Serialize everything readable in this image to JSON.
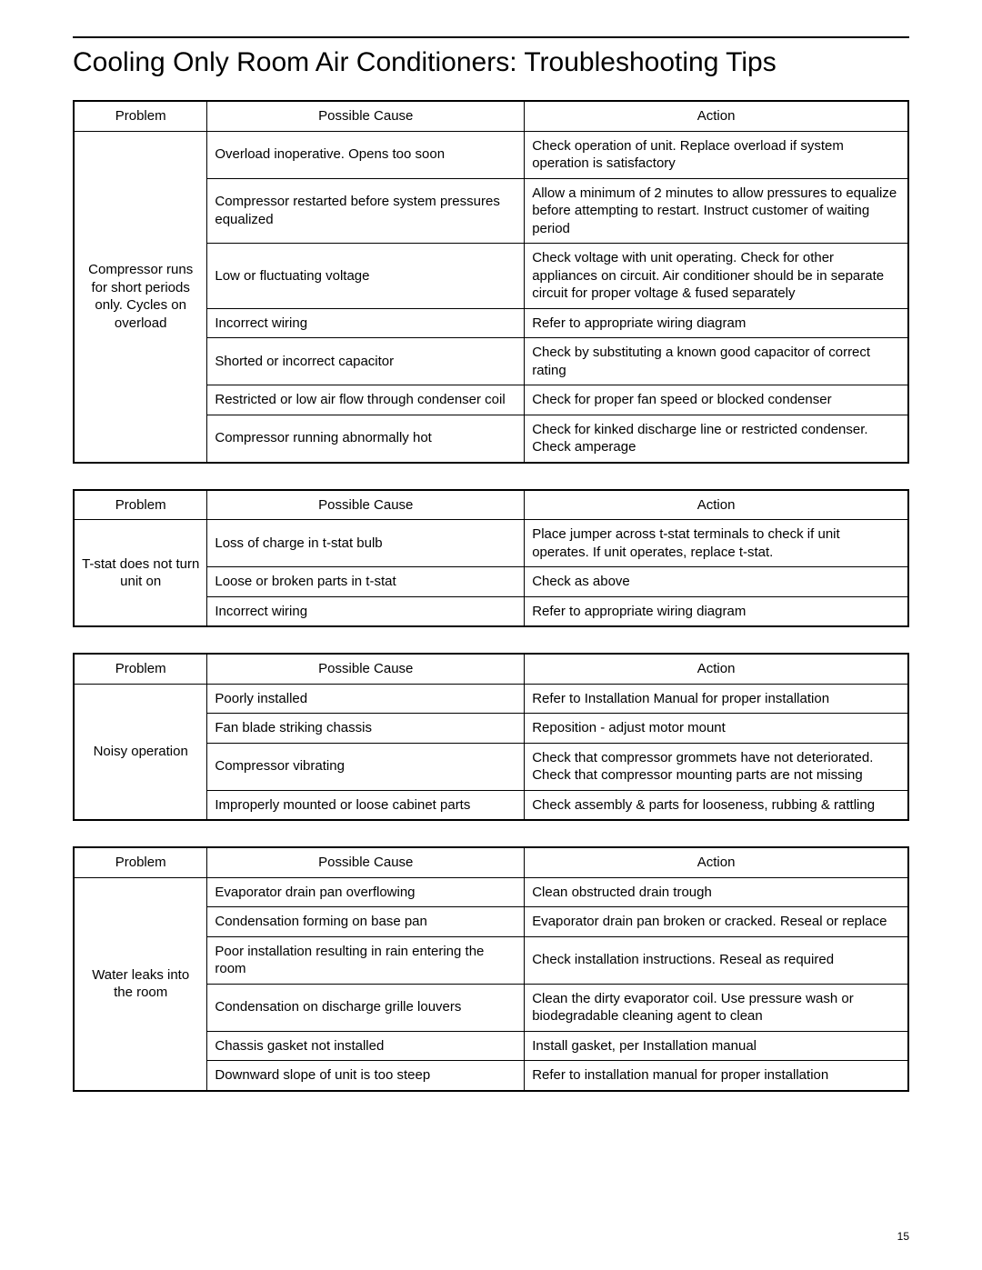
{
  "page_title": "Cooling Only Room Air Conditioners: Troubleshooting Tips",
  "page_number": "15",
  "columns": {
    "problem": "Problem",
    "cause": "Possible Cause",
    "action": "Action"
  },
  "col_widths_pct": {
    "problem": 16,
    "cause": 38,
    "action": 46
  },
  "font": {
    "title_size_pt": 30,
    "body_size_pt": 15,
    "color": "#000000"
  },
  "border_color": "#000000",
  "background_color": "#ffffff",
  "tables": [
    {
      "problem": "Compressor runs for short periods only. Cycles on overload",
      "rows": [
        {
          "cause": "Overload inoperative. Opens too soon",
          "action": "Check operation of unit. Replace overload if system operation is satisfactory"
        },
        {
          "cause": "Compressor restarted before system pressures equalized",
          "action": "Allow a minimum of 2 minutes to allow pressures to equalize before attempting to restart. Instruct customer of waiting period"
        },
        {
          "cause": "Low or ﬂuctuating voltage",
          "action": "Check voltage with unit operating. Check for other appliances on circuit. Air conditioner should be in separate circuit for proper voltage & fused separately"
        },
        {
          "cause": "Incorrect wiring",
          "action": "Refer to appropriate wiring diagram"
        },
        {
          "cause": "Shorted or incorrect capacitor",
          "action": "Check by substituting a known good capacitor of correct rating"
        },
        {
          "cause": "Restricted or low air ﬂow through condenser coil",
          "action": "Check for proper fan speed or blocked condenser"
        },
        {
          "cause": "Compressor running abnormally hot",
          "action": "Check for kinked discharge line or restricted condenser. Check amperage"
        }
      ]
    },
    {
      "problem": "T-stat does not turn unit on",
      "rows": [
        {
          "cause": "Loss of charge in t-stat bulb",
          "action": "Place jumper across t-stat terminals to check if unit operates. If unit operates, replace t-stat."
        },
        {
          "cause": "Loose or broken parts in t-stat",
          "action": "Check as above"
        },
        {
          "cause": "Incorrect wiring",
          "action": "Refer to appropriate wiring diagram"
        }
      ]
    },
    {
      "problem": "Noisy operation",
      "rows": [
        {
          "cause": "Poorly installed",
          "action": "Refer to Installation Manual for proper installation"
        },
        {
          "cause": "Fan blade striking chassis",
          "action": "Reposition - adjust motor mount"
        },
        {
          "cause": "Compressor vibrating",
          "action": "Check that compressor grommets have not deteriorated. Check that compressor mounting parts are not missing"
        },
        {
          "cause": "Improperly mounted or loose cabinet parts",
          "action": "Check assembly & parts for looseness, rubbing & rattling"
        }
      ]
    },
    {
      "problem": "Water leaks into the room",
      "rows": [
        {
          "cause": "Evaporator drain pan overﬂowing",
          "action": "Clean obstructed drain trough"
        },
        {
          "cause": "Condensation forming on base pan",
          "action": "Evaporator drain pan broken or cracked. Reseal or replace"
        },
        {
          "cause": "Poor installation resulting in rain entering the room",
          "action": "Check installation instructions. Reseal as required"
        },
        {
          "cause": "Condensation on discharge grille louvers",
          "action": "Clean the dirty evaporator coil. Use pressure wash or biodegradable cleaning agent to clean"
        },
        {
          "cause": "Chassis gasket not installed",
          "action": "Install gasket, per Installation manual"
        },
        {
          "cause": "Downward slope of unit is too steep",
          "action": "Refer to installation manual for proper installation"
        }
      ]
    }
  ]
}
